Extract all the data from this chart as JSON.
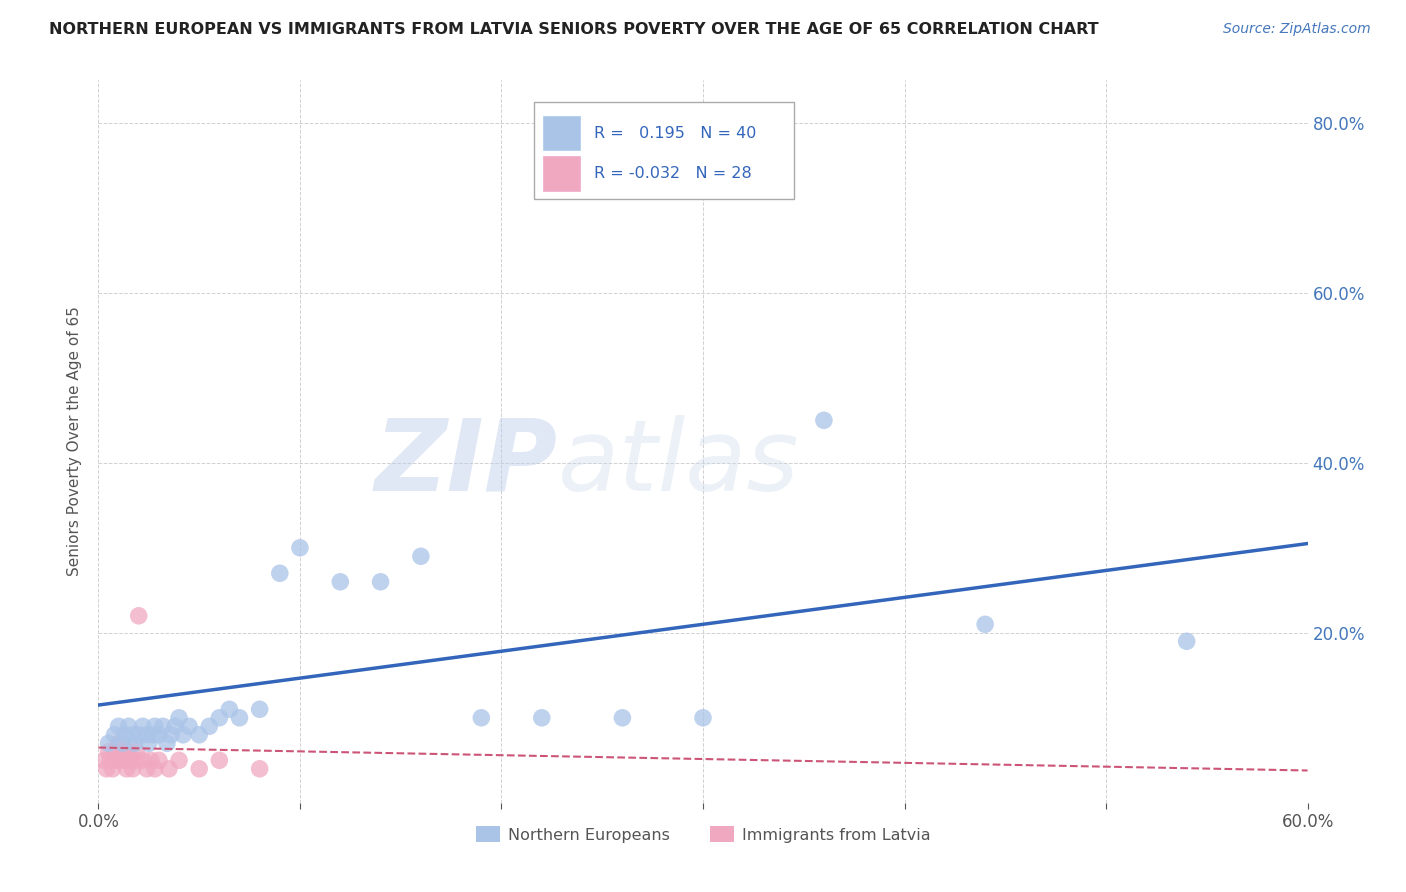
{
  "title": "NORTHERN EUROPEAN VS IMMIGRANTS FROM LATVIA SENIORS POVERTY OVER THE AGE OF 65 CORRELATION CHART",
  "source": "Source: ZipAtlas.com",
  "ylabel": "Seniors Poverty Over the Age of 65",
  "xlim": [
    0.0,
    0.6
  ],
  "ylim": [
    0.0,
    0.85
  ],
  "blue_R": 0.195,
  "blue_N": 40,
  "pink_R": -0.032,
  "pink_N": 28,
  "blue_color": "#aac4e8",
  "pink_color": "#f0a8c0",
  "blue_line_color": "#3366bb",
  "pink_line_color": "#cc5577",
  "watermark_zip": "ZIP",
  "watermark_atlas": "atlas",
  "background_color": "#ffffff",
  "grid_color": "#cccccc",
  "blue_scatter_x": [
    0.005,
    0.008,
    0.01,
    0.012,
    0.013,
    0.015,
    0.017,
    0.018,
    0.02,
    0.022,
    0.024,
    0.025,
    0.027,
    0.028,
    0.03,
    0.032,
    0.034,
    0.036,
    0.038,
    0.04,
    0.042,
    0.045,
    0.05,
    0.055,
    0.06,
    0.065,
    0.07,
    0.08,
    0.09,
    0.1,
    0.12,
    0.14,
    0.16,
    0.19,
    0.22,
    0.26,
    0.3,
    0.36,
    0.44,
    0.54
  ],
  "blue_scatter_y": [
    0.07,
    0.08,
    0.09,
    0.07,
    0.08,
    0.09,
    0.08,
    0.07,
    0.08,
    0.09,
    0.08,
    0.07,
    0.08,
    0.09,
    0.08,
    0.09,
    0.07,
    0.08,
    0.09,
    0.1,
    0.08,
    0.09,
    0.08,
    0.09,
    0.1,
    0.11,
    0.1,
    0.11,
    0.27,
    0.3,
    0.26,
    0.26,
    0.29,
    0.1,
    0.1,
    0.1,
    0.1,
    0.45,
    0.21,
    0.19
  ],
  "pink_scatter_x": [
    0.003,
    0.004,
    0.005,
    0.006,
    0.007,
    0.008,
    0.009,
    0.01,
    0.011,
    0.012,
    0.013,
    0.014,
    0.015,
    0.016,
    0.017,
    0.018,
    0.019,
    0.02,
    0.022,
    0.024,
    0.026,
    0.028,
    0.03,
    0.035,
    0.04,
    0.05,
    0.06,
    0.08
  ],
  "pink_scatter_y": [
    0.05,
    0.04,
    0.06,
    0.05,
    0.04,
    0.06,
    0.05,
    0.07,
    0.05,
    0.06,
    0.05,
    0.04,
    0.06,
    0.05,
    0.04,
    0.05,
    0.06,
    0.22,
    0.05,
    0.04,
    0.05,
    0.04,
    0.05,
    0.04,
    0.05,
    0.04,
    0.05,
    0.04
  ],
  "blue_line_x": [
    0.0,
    0.6
  ],
  "blue_line_y": [
    0.115,
    0.305
  ],
  "pink_line_x": [
    0.0,
    0.6
  ],
  "pink_line_y": [
    0.065,
    0.038
  ]
}
